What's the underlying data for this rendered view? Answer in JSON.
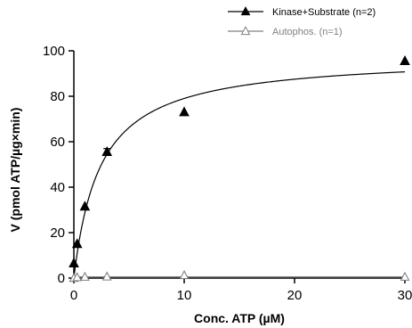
{
  "chart_data": {
    "type": "scatter",
    "xlabel": "Conc. ATP (µM)",
    "ylabel": "V (pmol ATP/µg×min)",
    "xlim": [
      0,
      30
    ],
    "ylim": [
      0,
      100
    ],
    "xticks": [
      0,
      10,
      20,
      30
    ],
    "yticks": [
      0,
      20,
      40,
      60,
      80,
      100
    ],
    "legend_position": "top-right",
    "grid": false,
    "series": [
      {
        "name": "Kinase+Substrate (n=2)",
        "marker": "filled-triangle",
        "color": "#000000",
        "x": [
          0,
          0.3,
          1,
          3,
          10,
          30
        ],
        "y": [
          6.5,
          15,
          31.5,
          55.5,
          73,
          95.5
        ],
        "error": [
          0,
          0,
          0,
          1.5,
          0,
          0
        ]
      },
      {
        "name": "Autophos. (n=1)",
        "marker": "open-triangle",
        "color": "#808080",
        "x": [
          0,
          0.3,
          1,
          3,
          10,
          30
        ],
        "y": [
          0,
          0.3,
          0.5,
          0.6,
          1.2,
          0.5
        ]
      }
    ],
    "fit": {
      "model": "Michaelis-Menten",
      "Vmax": 98,
      "Km": 2.4,
      "series": "Kinase+Substrate (n=2)"
    },
    "baseline_fit": {
      "series": "Autophos. (n=1)",
      "y": 0.6
    }
  }
}
